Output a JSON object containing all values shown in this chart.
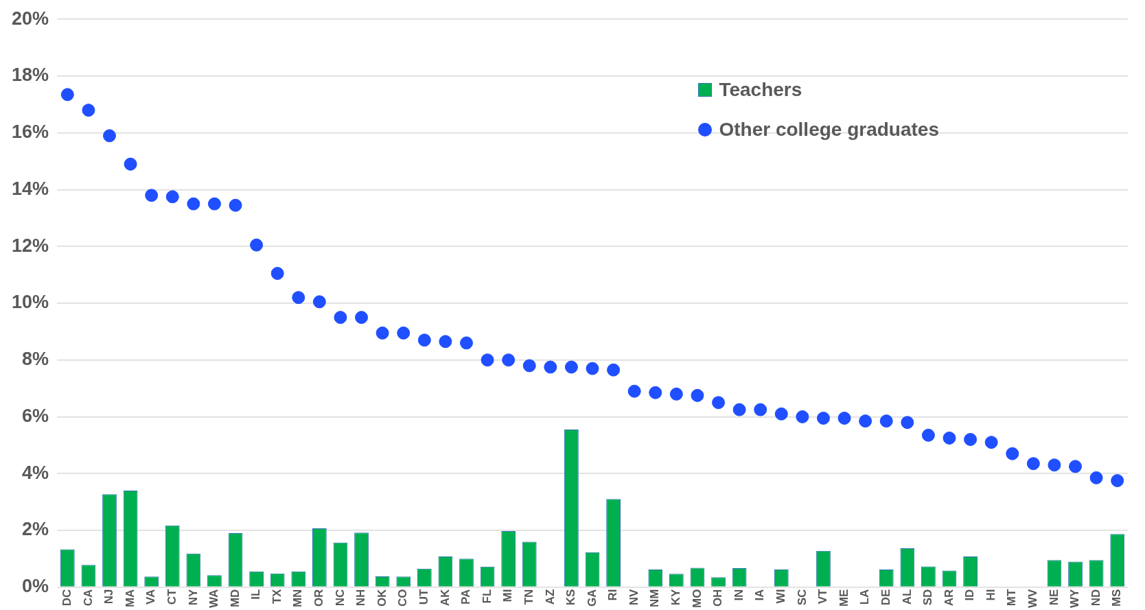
{
  "chart_data": {
    "type": "bar",
    "categories": [
      "DC",
      "CA",
      "NJ",
      "MA",
      "VA",
      "CT",
      "NY",
      "WA",
      "MD",
      "IL",
      "TX",
      "MN",
      "OR",
      "NC",
      "NH",
      "OK",
      "CO",
      "UT",
      "AK",
      "PA",
      "FL",
      "MI",
      "TN",
      "AZ",
      "KS",
      "GA",
      "RI",
      "NV",
      "NM",
      "KY",
      "MO",
      "OH",
      "IN",
      "IA",
      "WI",
      "SC",
      "VT",
      "ME",
      "LA",
      "DE",
      "AL",
      "SD",
      "AR",
      "ID",
      "HI",
      "MT",
      "WV",
      "NE",
      "WY",
      "ND",
      "MS"
    ],
    "series": [
      {
        "name": "Teachers",
        "color": "#00b050",
        "values": [
          1.33,
          0.78,
          3.27,
          3.4,
          0.37,
          2.17,
          1.18,
          0.42,
          1.9,
          0.55,
          0.48,
          0.55,
          2.07,
          1.57,
          1.92,
          0.38,
          0.37,
          0.65,
          1.08,
          1.0,
          0.72,
          1.97,
          1.6,
          null,
          5.55,
          1.23,
          3.1,
          null,
          0.62,
          0.47,
          0.68,
          0.35,
          0.67,
          null,
          0.62,
          null,
          1.28,
          null,
          null,
          0.62,
          1.37,
          0.73,
          0.58,
          1.08,
          null,
          null,
          null,
          0.95,
          0.9,
          0.95,
          1.87
        ]
      },
      {
        "name": "Other college graduates",
        "type": "scatter",
        "color": "#1f4fff",
        "values": [
          17.35,
          16.8,
          15.9,
          14.9,
          13.8,
          13.75,
          13.5,
          13.5,
          13.45,
          12.05,
          11.05,
          10.2,
          10.05,
          9.5,
          9.5,
          8.95,
          8.95,
          8.7,
          8.65,
          8.6,
          8.0,
          8.0,
          7.8,
          7.75,
          7.75,
          7.7,
          7.65,
          6.9,
          6.85,
          6.8,
          6.75,
          6.5,
          6.25,
          6.25,
          6.1,
          6.0,
          5.95,
          5.95,
          5.85,
          5.85,
          5.8,
          5.35,
          5.25,
          5.2,
          5.1,
          4.7,
          4.35,
          4.3,
          4.25,
          3.85,
          3.75
        ]
      }
    ],
    "ylim": [
      0,
      20
    ],
    "yticks": [
      {
        "value": 0,
        "label": "0%"
      },
      {
        "value": 2,
        "label": "2%"
      },
      {
        "value": 4,
        "label": "4%"
      },
      {
        "value": 6,
        "label": "6%"
      },
      {
        "value": 8,
        "label": "8%"
      },
      {
        "value": 10,
        "label": "10%"
      },
      {
        "value": 12,
        "label": "12%"
      },
      {
        "value": 14,
        "label": "14%"
      },
      {
        "value": 16,
        "label": "16%"
      },
      {
        "value": 18,
        "label": "18%"
      },
      {
        "value": 20,
        "label": "20%"
      }
    ],
    "grid": "y",
    "legend": "top right",
    "marker": "circle"
  }
}
